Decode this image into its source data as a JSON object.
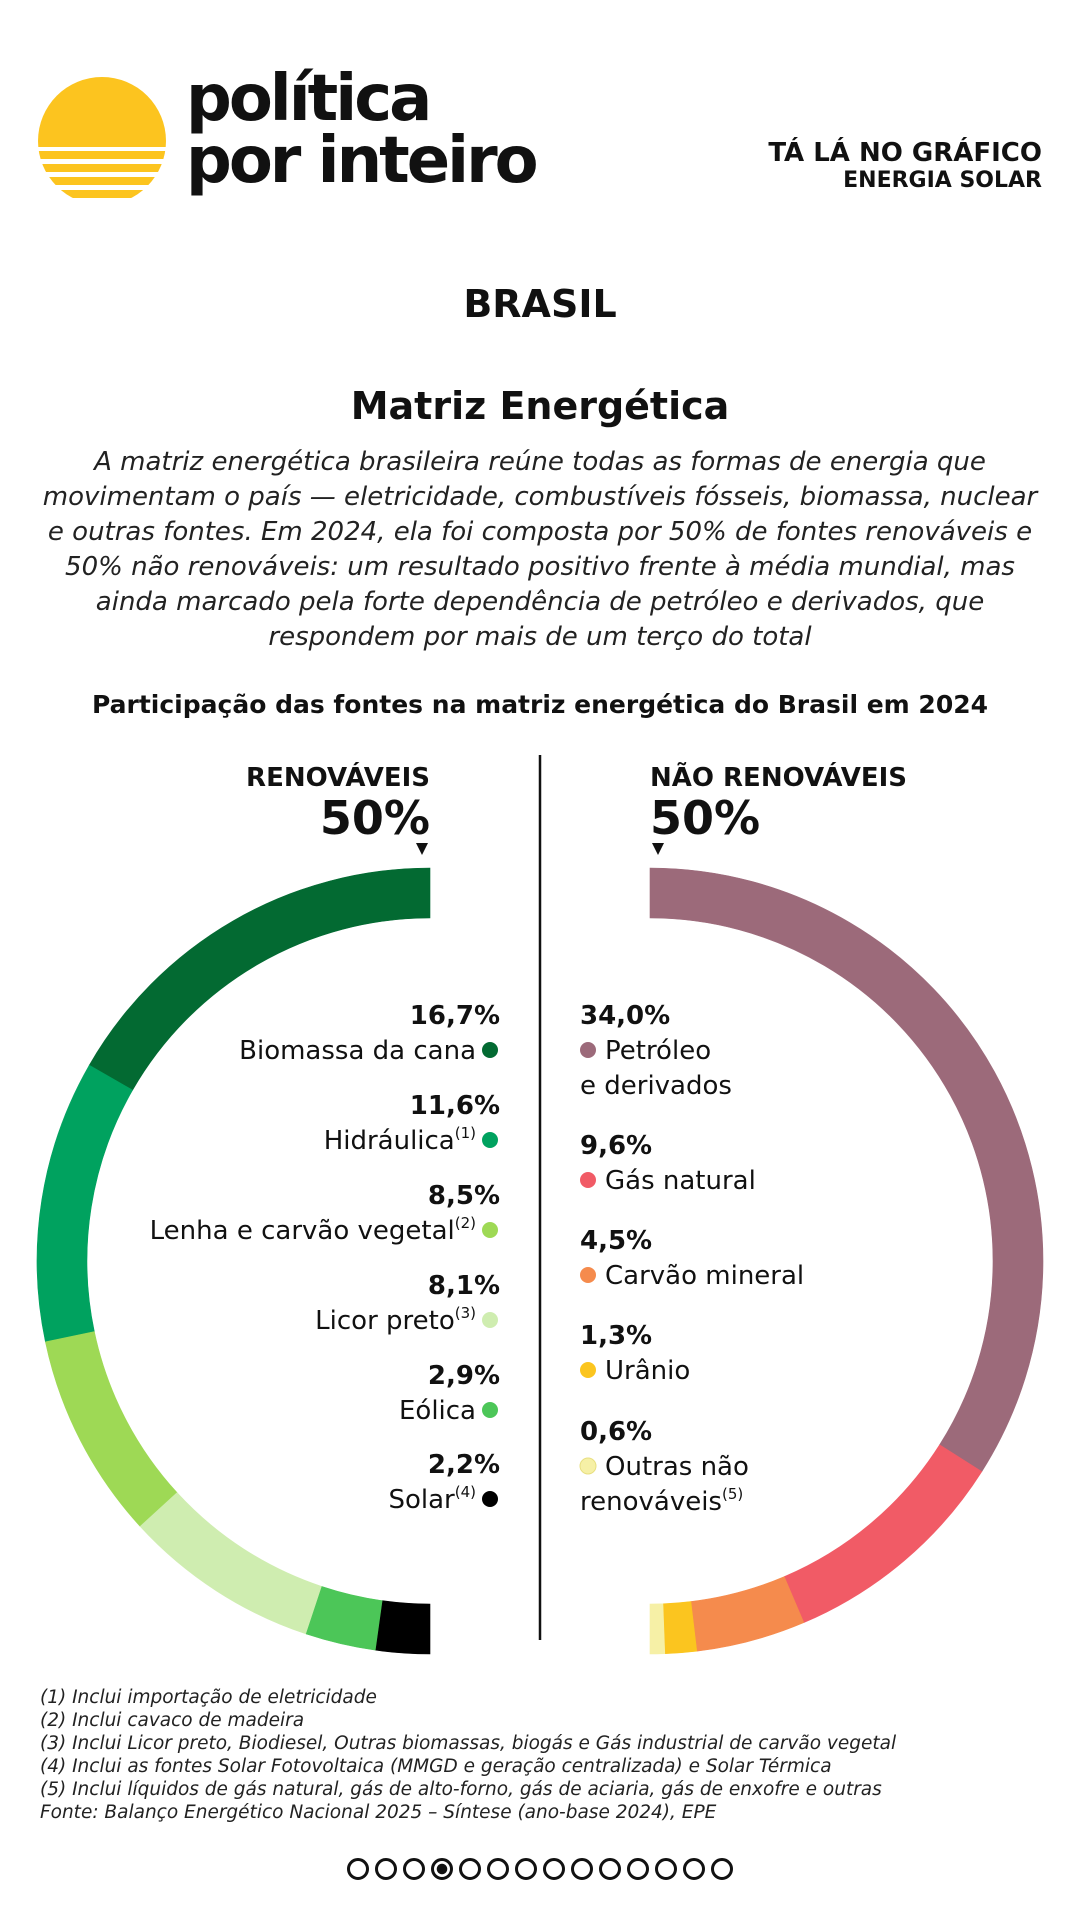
{
  "brand": {
    "line1": "política",
    "line2": "por inteiro",
    "sun_color": "#FCC41F"
  },
  "kicker": {
    "line1": "TÁ LÁ NO GRÁFICO",
    "line2": "ENERGIA SOLAR"
  },
  "country": "BRASIL",
  "title": "Matriz Energética",
  "description": "A matriz energética brasileira reúne todas as formas de energia que movimentam o país — eletricidade, combustíveis fósseis, biomassa, nuclear e outras fontes. Em 2024, ela foi composta por 50% de fontes renováveis e 50% não renováveis: um resultado positivo frente à média mundial, mas ainda marcado pela forte dependência de petróleo e derivados, que respondem por mais de um terço do total",
  "chart_data": {
    "type": "pie",
    "title": "Participação das fontes na matriz energética do Brasil em 2024",
    "groups": [
      {
        "name": "RENOVÁVEIS",
        "total_label": "50%",
        "total": 50,
        "slices": [
          {
            "label": "Biomassa da cana",
            "sup": "",
            "value": 16.7,
            "value_label": "16,7%",
            "color": "#036A32"
          },
          {
            "label": "Hidráulica",
            "sup": "(1)",
            "value": 11.6,
            "value_label": "11,6%",
            "color": "#00A25F"
          },
          {
            "label": "Lenha e carvão vegetal",
            "sup": "(2)",
            "value": 8.5,
            "value_label": "8,5%",
            "color": "#9ED955"
          },
          {
            "label": "Licor preto",
            "sup": "(3)",
            "value": 8.1,
            "value_label": "8,1%",
            "color": "#CFEDB0"
          },
          {
            "label": "Eólica",
            "sup": "",
            "value": 2.9,
            "value_label": "2,9%",
            "color": "#4CC658"
          },
          {
            "label": "Solar",
            "sup": "(4)",
            "value": 2.2,
            "value_label": "2,2%",
            "color": "#000000"
          }
        ]
      },
      {
        "name": "NÃO RENOVÁVEIS",
        "total_label": "50%",
        "total": 50,
        "slices": [
          {
            "label_lines": [
              "Petróleo",
              "e derivados"
            ],
            "sup": "",
            "value": 34.0,
            "value_label": "34,0%",
            "color": "#9C6A7A"
          },
          {
            "label_lines": [
              "Gás natural"
            ],
            "sup": "",
            "value": 9.6,
            "value_label": "9,6%",
            "color": "#F15B66"
          },
          {
            "label_lines": [
              "Carvão mineral"
            ],
            "sup": "",
            "value": 4.5,
            "value_label": "4,5%",
            "color": "#F58B4D"
          },
          {
            "label_lines": [
              "Urânio"
            ],
            "sup": "",
            "value": 1.3,
            "value_label": "1,3%",
            "color": "#FBC51F"
          },
          {
            "label_lines": [
              "Outras não",
              "renováveis"
            ],
            "sup": "(5)",
            "value": 0.6,
            "value_label": "0,6%",
            "color": "#F6F0A6"
          }
        ]
      }
    ]
  },
  "notes": [
    "(1) Inclui importação de eletricidade",
    "(2) Inclui cavaco de madeira",
    "(3) Inclui Licor preto, Biodiesel, Outras biomassas, biogás e Gás industrial de carvão vegetal",
    "(4) Inclui as fontes Solar Fotovoltaica (MMGD e geração centralizada) e Solar Térmica",
    "(5) Inclui líquidos de gás natural, gás de alto-forno, gás de aciaria, gás de enxofre e outras",
    "Fonte: Balanço Energético Nacional 2025 – Síntese (ano-base 2024), EPE"
  ],
  "pager": {
    "count": 14,
    "active_index": 3
  }
}
